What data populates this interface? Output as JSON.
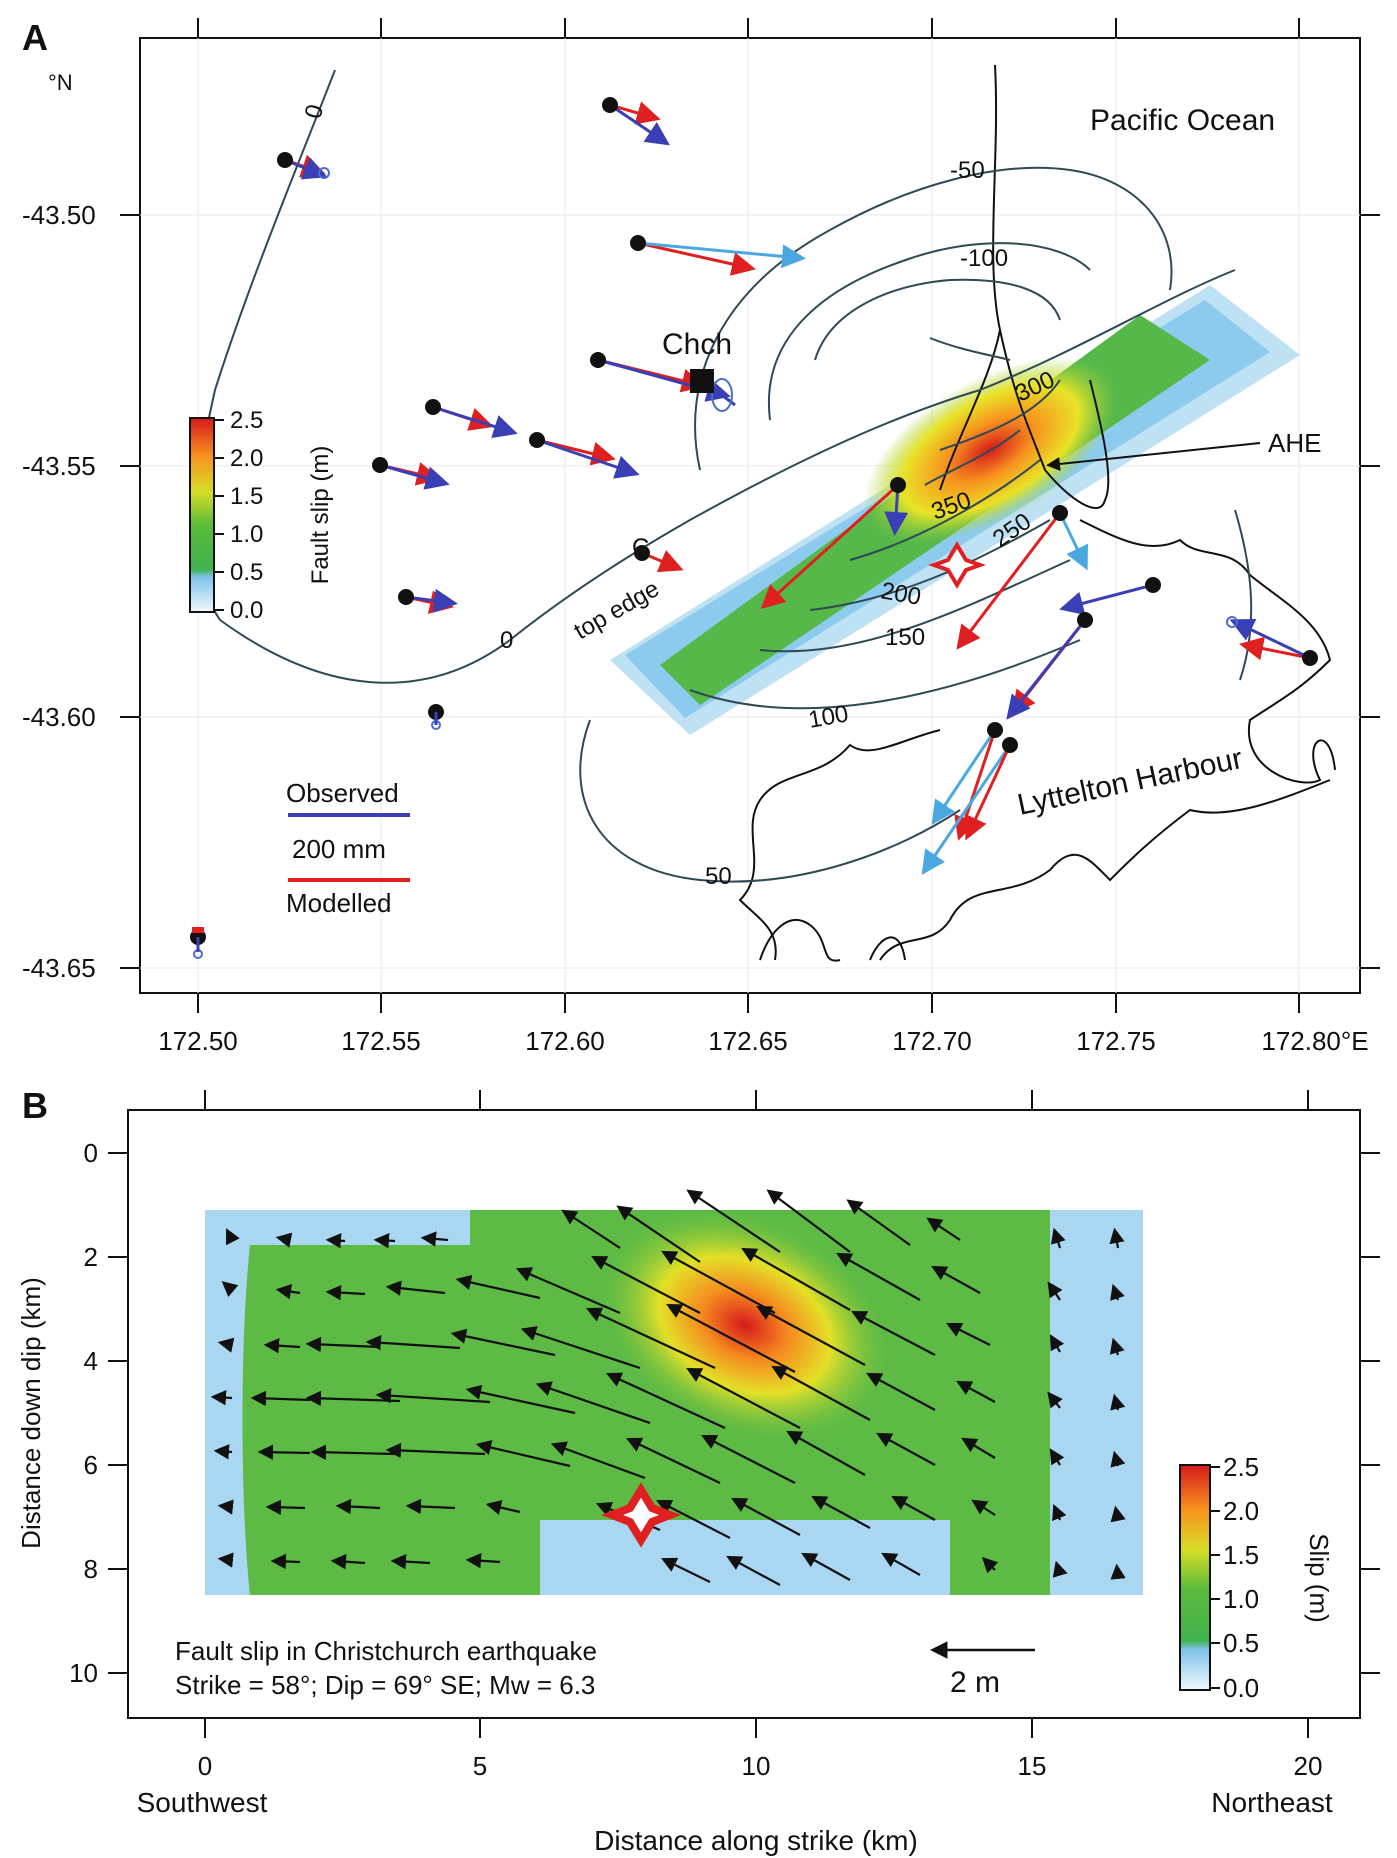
{
  "panel_a": {
    "label": "A",
    "y_unit": "°N",
    "x_unit": "°E",
    "ocean_label": "Pacific Ocean",
    "city_label": "Chch",
    "station_c_label": "C",
    "ahe_label": "AHE",
    "top_edge_label": "top edge",
    "harbour_label": "Lyttelton Harbour",
    "colorbar_title": "Fault slip (m)",
    "colorbar_ticks": [
      "2.5",
      "2.0",
      "1.5",
      "1.0",
      "0.5",
      "0.0"
    ],
    "legend": {
      "observed": "Observed",
      "scale": "200 mm",
      "modelled": "Modelled"
    },
    "contour_labels": [
      "0",
      "0",
      "-50",
      "-100",
      "300",
      "350",
      "250",
      "200",
      "150",
      "100",
      "50"
    ]
  },
  "panel_b": {
    "label": "B",
    "caption_line1": "Fault slip in Christchurch earthquake",
    "caption_line2": "Strike = 58°; Dip = 69° SE; Mw = 6.3",
    "scale_arrow_label": "2 m",
    "colorbar_title": "Slip (m)",
    "colorbar_ticks": [
      "2.5",
      "2.0",
      "1.5",
      "1.0",
      "0.5",
      "0.0"
    ],
    "ylabel": "Distance down dip (km)",
    "xlabel": "Distance along strike (km)",
    "left_label": "Southwest",
    "right_label": "Northeast"
  },
  "chart_data": [
    {
      "type": "heatmap",
      "panel": "A",
      "x": {
        "ticks": [
          "172.50",
          "172.55",
          "172.60",
          "172.65",
          "172.70",
          "172.75",
          "172.80°E"
        ],
        "range": [
          172.48,
          172.815
        ]
      },
      "y": {
        "ticks": [
          "-43.50",
          "-43.55",
          "-43.60",
          "-43.65"
        ],
        "range": [
          -43.655,
          -43.465
        ]
      },
      "colorbar": {
        "min": 0.0,
        "max": 2.5,
        "unit": "m"
      }
    },
    {
      "type": "heatmap",
      "panel": "B",
      "x": {
        "ticks": [
          "0",
          "5",
          "10",
          "15",
          "20"
        ],
        "range": [
          -1,
          21
        ]
      },
      "y": {
        "ticks": [
          "0",
          "2",
          "4",
          "6",
          "8",
          "10"
        ],
        "range": [
          -1,
          11
        ]
      },
      "colorbar": {
        "min": 0.0,
        "max": 2.5,
        "unit": "m"
      }
    }
  ]
}
